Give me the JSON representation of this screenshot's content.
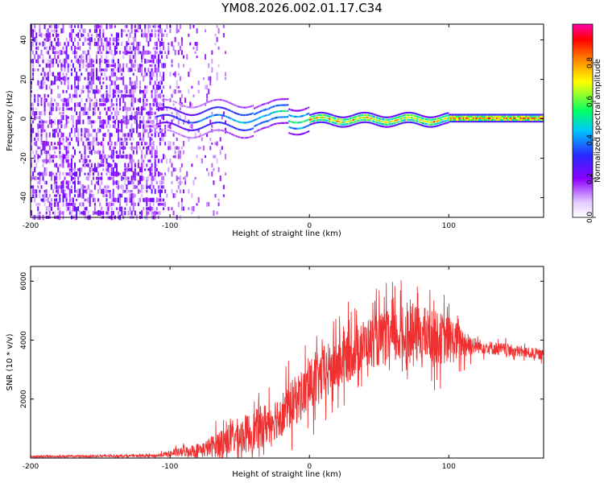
{
  "title": "YM08.2026.002.01.17.C34",
  "chart_data": [
    {
      "type": "heatmap",
      "name": "spectrogram",
      "xlabel": "Height of straight line (km)",
      "ylabel": "Frequency (Hz)",
      "xlim": [
        -200,
        168
      ],
      "ylim": [
        -50,
        48
      ],
      "xticks": [
        -200,
        -100,
        0,
        100
      ],
      "yticks": [
        -40,
        -20,
        0,
        20,
        40
      ],
      "description_regions": [
        {
          "x_range": [
            -200,
            -100
          ],
          "behaviour": "broadband noise, low amplitude across all frequencies"
        },
        {
          "x_range": [
            -100,
            0
          ],
          "behaviour": "signal concentrating near 0 Hz, wobbling ±10 Hz"
        },
        {
          "x_range": [
            0,
            168
          ],
          "behaviour": "narrow band centred near 0 Hz, high amplitude"
        }
      ],
      "colorbar": {
        "label": "Normalized spectral amplitude",
        "range": [
          0,
          1
        ],
        "ticks": [
          0.0,
          0.2,
          0.4,
          0.6,
          0.8
        ],
        "tick_labels": [
          "0.0",
          "0.2",
          "0.4",
          "0.6",
          "0.8"
        ],
        "colors": [
          "#ffffff",
          "#8a00ff",
          "#2a2aff",
          "#00c8ff",
          "#00ff66",
          "#ffff00",
          "#ff7f00",
          "#ff0000",
          "#ff00aa"
        ]
      }
    },
    {
      "type": "line",
      "name": "snr",
      "xlabel": "Height of straight line (km)",
      "ylabel": "SNR (10 * v/v)",
      "xlim": [
        -200,
        168
      ],
      "ylim": [
        0,
        6500
      ],
      "xticks": [
        -200,
        -100,
        0,
        100
      ],
      "yticks": [
        2000,
        4000,
        6000
      ],
      "color": "#f03030",
      "envelope": [
        {
          "x": -200,
          "base": 50,
          "spread": 40
        },
        {
          "x": -110,
          "base": 80,
          "spread": 60
        },
        {
          "x": -100,
          "base": 150,
          "spread": 150
        },
        {
          "x": -75,
          "base": 300,
          "spread": 400
        },
        {
          "x": -60,
          "base": 600,
          "spread": 800
        },
        {
          "x": -40,
          "base": 900,
          "spread": 1000
        },
        {
          "x": -20,
          "base": 1500,
          "spread": 1100
        },
        {
          "x": 0,
          "base": 2400,
          "spread": 1300
        },
        {
          "x": 20,
          "base": 3200,
          "spread": 1400
        },
        {
          "x": 40,
          "base": 3900,
          "spread": 1200
        },
        {
          "x": 60,
          "base": 4100,
          "spread": 1400
        },
        {
          "x": 80,
          "base": 4200,
          "spread": 1400
        },
        {
          "x": 100,
          "base": 4000,
          "spread": 1200
        },
        {
          "x": 120,
          "base": 3800,
          "spread": 350
        },
        {
          "x": 168,
          "base": 3500,
          "spread": 250
        }
      ]
    }
  ]
}
